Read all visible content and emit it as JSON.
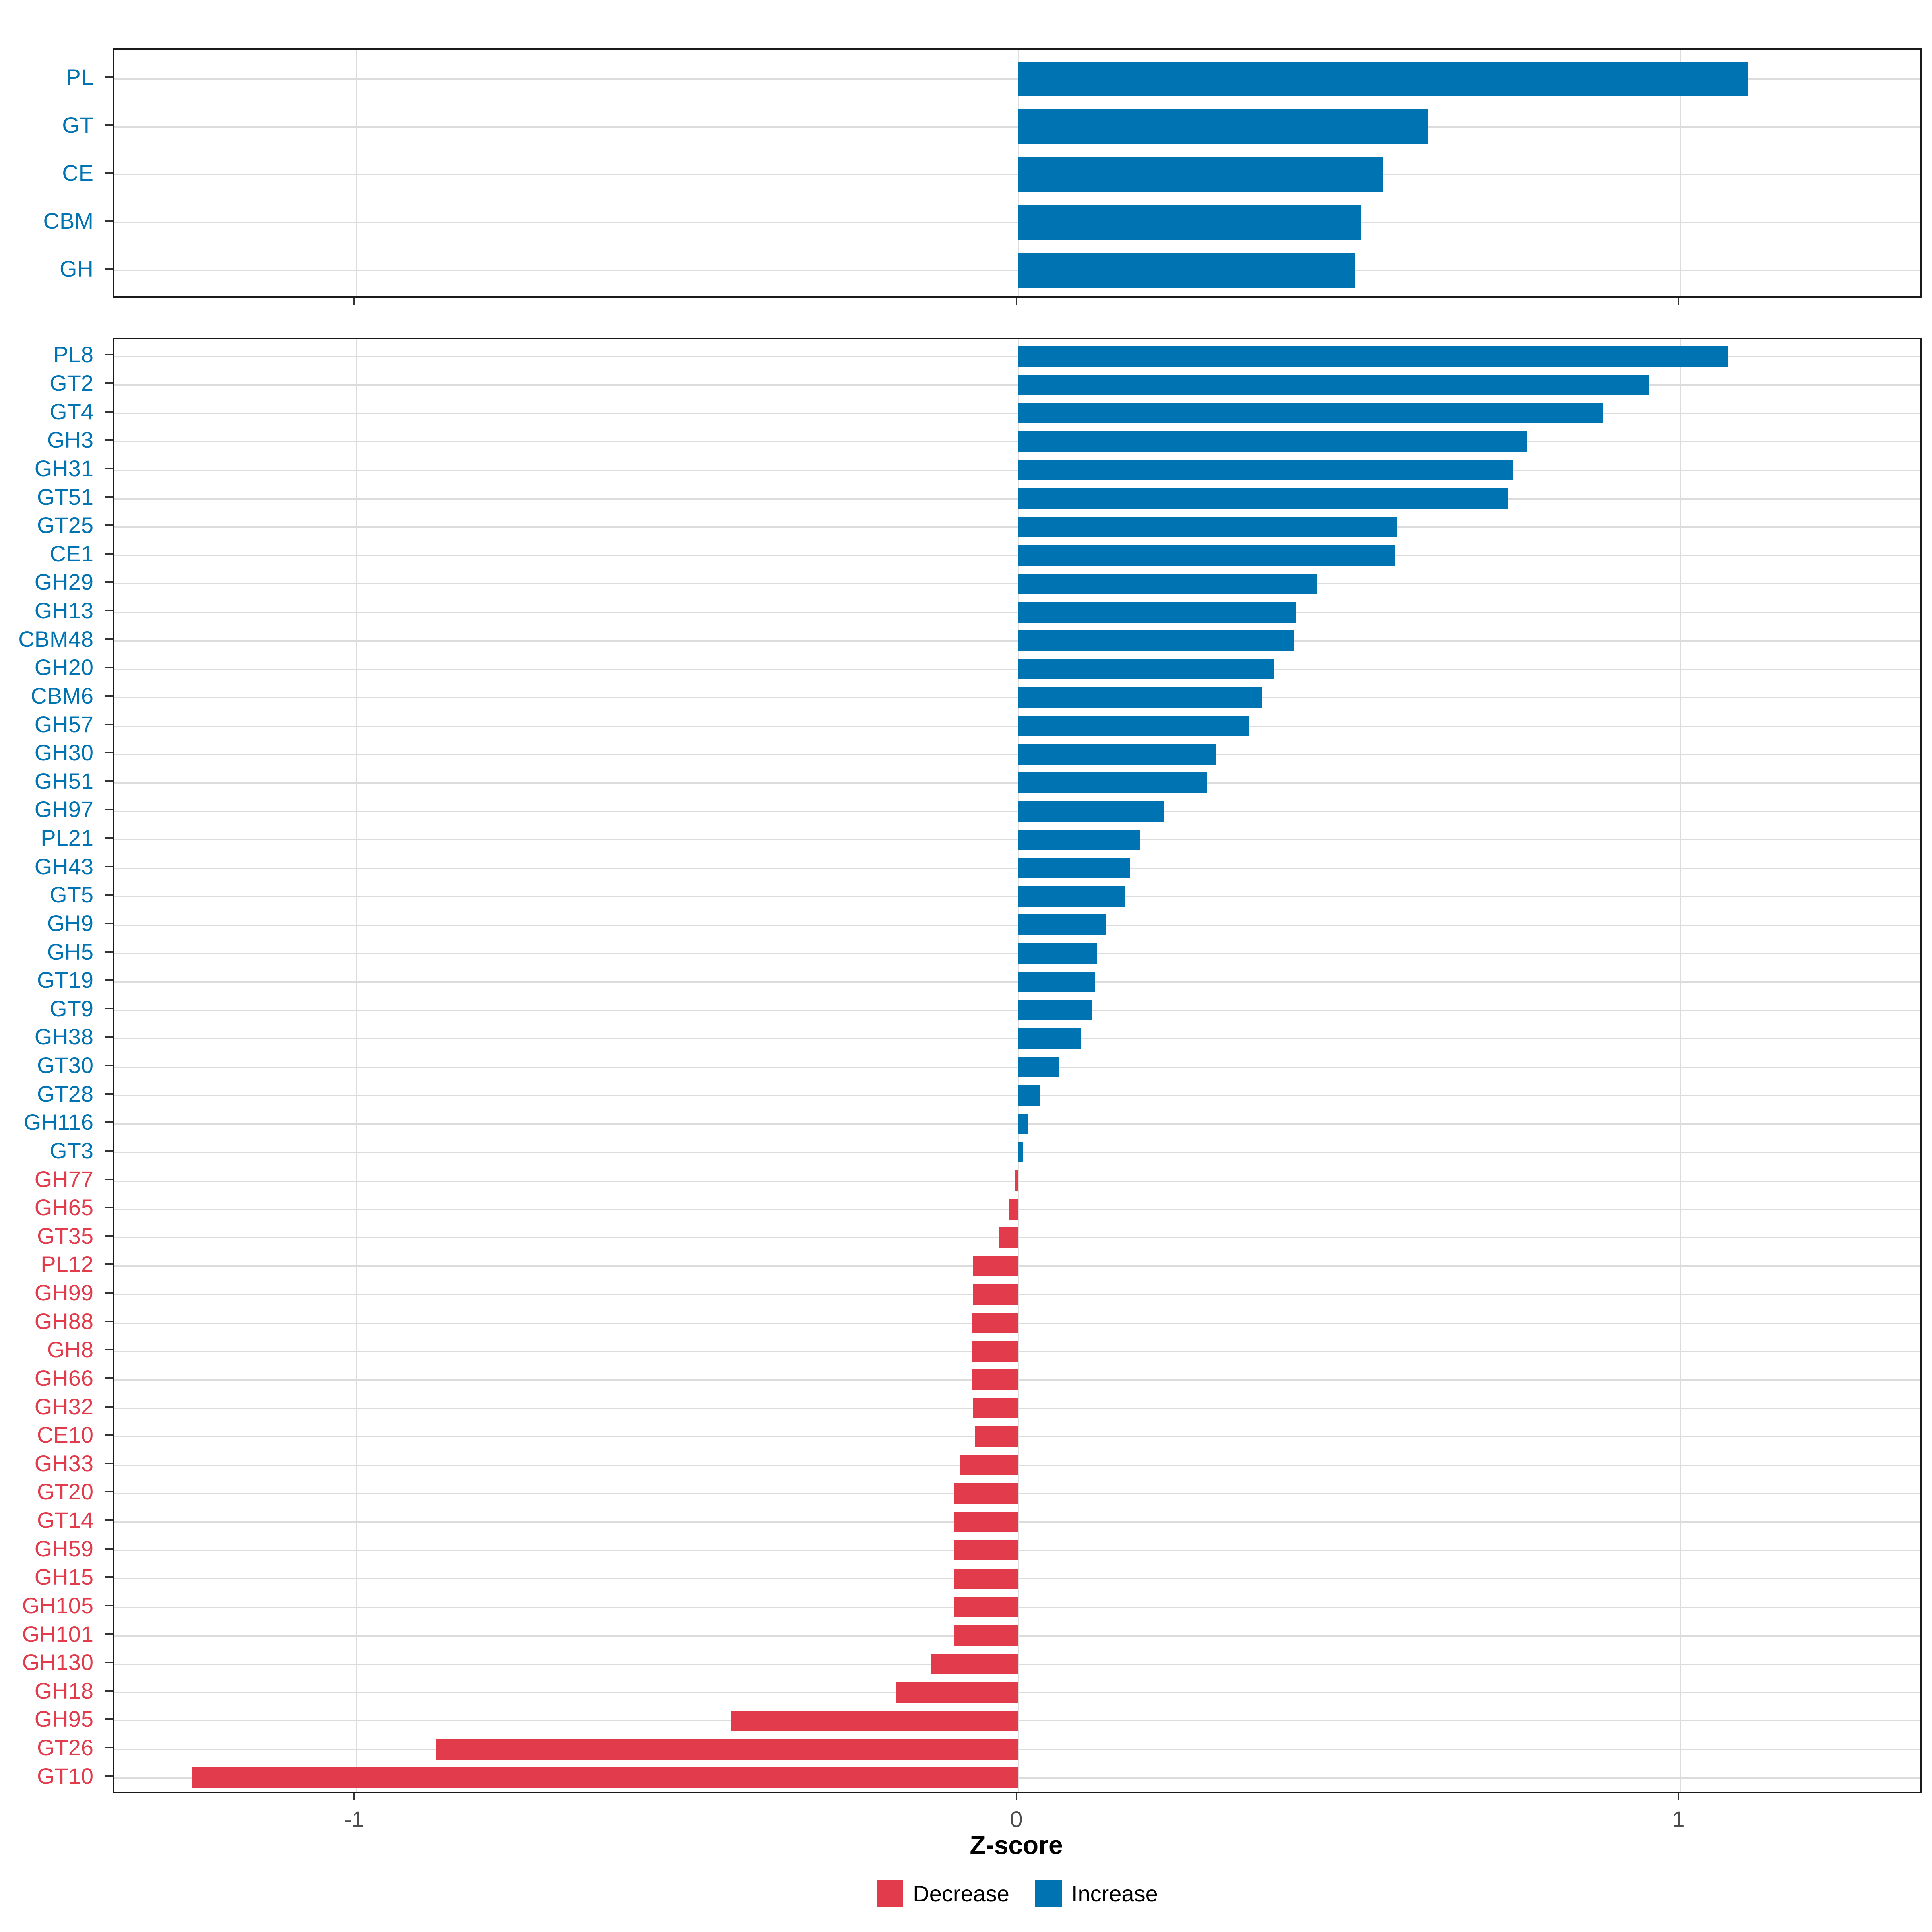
{
  "axis": {
    "xlabel": "Z-score",
    "ticks": [
      "-1",
      "0",
      "1"
    ],
    "tick_values": [
      -1,
      0,
      1
    ],
    "xlim": [
      -1.365,
      1.368
    ]
  },
  "legend": {
    "items": [
      {
        "label": "Decrease",
        "color": "#e23b4c"
      },
      {
        "label": "Increase",
        "color": "#0073b3"
      }
    ]
  },
  "colors": {
    "increase": "#0073b3",
    "decrease": "#e23b4c",
    "grid": "#dcdcdc",
    "panel_border": "#1a1a1a",
    "tick": "#333333",
    "tick_label": "#4d4d4d"
  },
  "chart_data": [
    {
      "type": "bar",
      "orientation": "horizontal",
      "panel": "top",
      "title": "",
      "xlabel": "Z-score",
      "grid": true,
      "categories": [
        "PL",
        "GT",
        "CE",
        "CBM",
        "GH"
      ],
      "values": [
        1.103,
        0.62,
        0.552,
        0.518,
        0.509
      ],
      "series_colors": [
        "#0073b3",
        "#0073b3",
        "#0073b3",
        "#0073b3",
        "#0073b3"
      ]
    },
    {
      "type": "bar",
      "orientation": "horizontal",
      "panel": "bottom",
      "title": "",
      "xlabel": "Z-score",
      "grid": true,
      "categories": [
        "PL8",
        "GT2",
        "GT4",
        "GH3",
        "GH31",
        "GT51",
        "GT25",
        "CE1",
        "GH29",
        "GH13",
        "CBM48",
        "GH20",
        "CBM6",
        "GH57",
        "GH30",
        "GH51",
        "GH97",
        "PL21",
        "GH43",
        "GT5",
        "GH9",
        "GH5",
        "GT19",
        "GT9",
        "GH38",
        "GT30",
        "GT28",
        "GH116",
        "GT3",
        "GH77",
        "GH65",
        "GT35",
        "PL12",
        "GH99",
        "GH88",
        "GH8",
        "GH66",
        "GH32",
        "CE10",
        "GH33",
        "GT20",
        "GT14",
        "GH59",
        "GH15",
        "GH105",
        "GH101",
        "GH130",
        "GH18",
        "GH95",
        "GT26",
        "GT10"
      ],
      "values": [
        1.073,
        0.953,
        0.884,
        0.77,
        0.748,
        0.74,
        0.573,
        0.569,
        0.451,
        0.421,
        0.417,
        0.387,
        0.369,
        0.349,
        0.3,
        0.286,
        0.22,
        0.185,
        0.169,
        0.161,
        0.134,
        0.119,
        0.117,
        0.111,
        0.095,
        0.062,
        0.034,
        0.015,
        0.008,
        -0.004,
        -0.014,
        -0.028,
        -0.068,
        -0.068,
        -0.07,
        -0.07,
        -0.07,
        -0.068,
        -0.065,
        -0.088,
        -0.096,
        -0.096,
        -0.096,
        -0.096,
        -0.096,
        -0.096,
        -0.131,
        -0.185,
        -0.433,
        -0.879,
        -1.247
      ]
    }
  ]
}
